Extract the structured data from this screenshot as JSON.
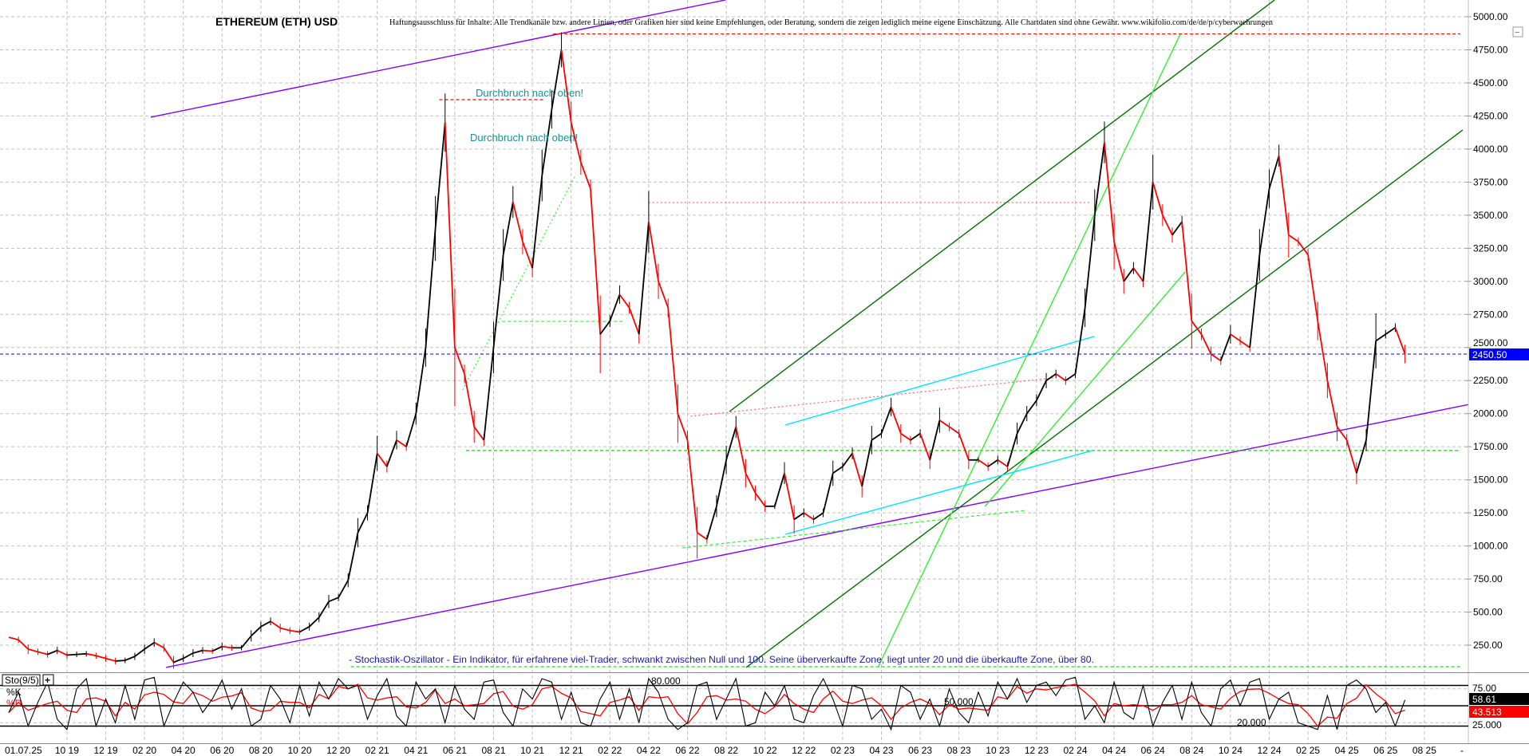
{
  "header": {
    "title": "ETHEREUM (ETH) USD",
    "disclaimer": "Haftungsausschluss für Inhalte: Alle Trendkanäle bzw. andere Linien, oder Grafiken hier sind keine Empfehlungen, oder Beratung, sondern die zeigen lediglich meine eigene Einschätzung. Alle Chartdaten sind ohne Gewähr.  www.wikifolio.com/de/de/p/cyberwaehrungen"
  },
  "annotations": {
    "breakout_1": "Durchbruch nach oben!",
    "breakout_2": "Durchbruch nach oben!",
    "stochastic_note": "- Stochastik-Oszillator - Ein Indikator, für erfahrene viel-Trader, schwankt zwischen Null und 100. Seine überverkaufte Zone, liegt unter 20 und die überkaufte Zone, über 80."
  },
  "indicator": {
    "name": "Sto(9/5)",
    "add": "+",
    "k_label": "%K",
    "d_label": "%D",
    "level_80": "80.000",
    "level_50": "50.000",
    "level_20": "20.000",
    "axis_75": "75.00",
    "axis_25": "25.000",
    "k_value": "58.61",
    "d_value": "43.513"
  },
  "date_label": "01.07.25",
  "axis_end": "-",
  "collapse": "−",
  "price_tag": "2450.50",
  "colors": {
    "up": "#000000",
    "down": "#ff0000",
    "price_line": "#0000ff",
    "support": "#8000ff",
    "grid": "#c0c0c0"
  },
  "chart_data": {
    "type": "line",
    "title": "ETHEREUM (ETH) USD",
    "xlabel": "",
    "ylabel": "",
    "ylim": [
      0,
      5127
    ],
    "grid": true,
    "yticks": [
      250,
      500,
      750,
      1000,
      1250,
      1500,
      1750,
      2000,
      2250,
      2500,
      2750,
      3000,
      3250,
      3500,
      3750,
      4000,
      4250,
      4500,
      4750,
      5000
    ],
    "xticks": [
      "10 19",
      "12 19",
      "02 20",
      "04 20",
      "06 20",
      "08 20",
      "10 20",
      "12 20",
      "02 21",
      "04 21",
      "06 21",
      "08 21",
      "10 21",
      "12 21",
      "02 22",
      "04 22",
      "06 22",
      "08 22",
      "10 22",
      "12 22",
      "02 23",
      "04 23",
      "06 23",
      "08 23",
      "10 23",
      "12 23",
      "02 24",
      "04 24",
      "06 24",
      "08 24",
      "10 24",
      "12 24",
      "02 25",
      "04 25",
      "06 25",
      "08 25"
    ],
    "current_price": 2450.5,
    "series": [
      {
        "name": "ETH/USD",
        "start": "2019-07-01",
        "step": "half-month",
        "values": [
          310,
          290,
          220,
          200,
          180,
          210,
          175,
          180,
          185,
          170,
          150,
          130,
          135,
          165,
          220,
          270,
          230,
          120,
          150,
          190,
          210,
          205,
          240,
          230,
          230,
          320,
          390,
          430,
          380,
          360,
          350,
          390,
          460,
          580,
          610,
          740,
          1100,
          1250,
          1700,
          1600,
          1800,
          1750,
          2000,
          2500,
          3400,
          4200,
          2500,
          2300,
          1900,
          1800,
          2500,
          3200,
          3600,
          3300,
          3100,
          3800,
          4300,
          4750,
          4200,
          3900,
          3700,
          2600,
          2700,
          2900,
          2800,
          2600,
          3450,
          3000,
          2800,
          2000,
          1800,
          1100,
          1050,
          1300,
          1650,
          1900,
          1550,
          1400,
          1300,
          1300,
          1550,
          1200,
          1250,
          1200,
          1250,
          1550,
          1600,
          1700,
          1450,
          1800,
          1850,
          2050,
          1850,
          1800,
          1850,
          1650,
          1950,
          1900,
          1850,
          1650,
          1650,
          1600,
          1650,
          1600,
          1850,
          2000,
          2100,
          2250,
          2300,
          2250,
          2300,
          2800,
          3500,
          4050,
          3300,
          3000,
          3100,
          3000,
          3750,
          3500,
          3350,
          3450,
          2700,
          2600,
          2450,
          2400,
          2600,
          2550,
          2500,
          3200,
          3700,
          3950,
          3350,
          3300,
          3200,
          2700,
          2250,
          1900,
          1800,
          1550,
          1800,
          2550,
          2600,
          2650,
          2450.5
        ]
      }
    ],
    "trendlines": [
      {
        "name": "support-trendline",
        "from": [
          2020.176,
          82
        ],
        "to": [
          2026.033,
          2161
        ],
        "color": "#8000ff",
        "style": "solid"
      },
      {
        "name": "top-trendline",
        "from": [
          2020.11,
          4241
        ],
        "to": [
          2022.58,
          5127
        ],
        "color": "#8000ff",
        "style": "solid"
      },
      {
        "name": "ath-level",
        "from": [
          2021.839,
          4870
        ],
        "to": [
          2025.738,
          4870
        ],
        "color": "#ff0000",
        "style": "dashed"
      },
      {
        "name": "support-level-1720",
        "from": [
          2021.465,
          1721
        ],
        "to": [
          2025.738,
          1721
        ],
        "color": "#00dd00",
        "style": "dashed"
      },
      {
        "name": "base-level",
        "from": [
          2020.97,
          87
        ],
        "to": [
          2025.738,
          87
        ],
        "color": "#00dd00",
        "style": "dashed"
      },
      {
        "name": "channel-upper",
        "from": [
          2022.597,
          2016
        ],
        "to": [
          2024.94,
          5127
        ],
        "color": "#007000",
        "style": "solid"
      },
      {
        "name": "channel-lower",
        "from": [
          2022.669,
          82
        ],
        "to": [
          2025.748,
          4144
        ],
        "color": "#007000",
        "style": "solid"
      },
      {
        "name": "steep-trendline",
        "from": [
          2023.235,
          82
        ],
        "to": [
          2024.534,
          4867
        ],
        "color": "#33ee33",
        "style": "solid"
      },
      {
        "name": "steep-trendline-2",
        "from": [
          2023.695,
          1299
        ],
        "to": [
          2024.555,
          3071
        ],
        "color": "#33ee33",
        "style": "solid"
      },
      {
        "name": "cyan-upper",
        "from": [
          2022.837,
          1914
        ],
        "to": [
          2024.164,
          2583
        ],
        "color": "#00e5ff",
        "style": "solid"
      },
      {
        "name": "cyan-lower",
        "from": [
          2022.837,
          1088
        ],
        "to": [
          2024.157,
          1721
        ],
        "color": "#00e5ff",
        "style": "solid"
      },
      {
        "name": "red-dotted-rise",
        "from": [
          2022.43,
          1980
        ],
        "to": [
          2023.99,
          2270
        ],
        "color": "#ff6666",
        "style": "dotted"
      },
      {
        "name": "resistance-3590",
        "from": [
          2022.25,
          3596
        ],
        "to": [
          2024.15,
          3596
        ],
        "color": "#ff6666",
        "style": "dotted"
      },
      {
        "name": "breakout-box",
        "from": [
          2021.35,
          4373
        ],
        "to": [
          2021.8,
          4373
        ],
        "color": "#ff0000",
        "style": "dashed"
      },
      {
        "name": "green-dotted-2021",
        "from": [
          2021.45,
          2179
        ],
        "to": [
          2021.935,
          3800
        ],
        "color": "#33ee33",
        "style": "dotted"
      },
      {
        "name": "level-2700",
        "from": [
          2021.62,
          2697
        ],
        "to": [
          2022.14,
          2697
        ],
        "color": "#33ee33",
        "style": "dashed"
      },
      {
        "name": "green-dotted-2022",
        "from": [
          2022.394,
          985
        ],
        "to": [
          2023.872,
          1269
        ],
        "color": "#33ee33",
        "style": "dashed"
      }
    ],
    "stochastic": {
      "name": "Sto(9/5)",
      "levels": [
        80,
        50,
        20
      ],
      "ylim": [
        0,
        100
      ],
      "k": [
        40,
        70,
        20,
        55,
        85,
        30,
        15,
        75,
        90,
        20,
        60,
        25,
        80,
        30,
        88,
        92,
        20,
        55,
        85,
        70,
        40,
        60,
        88,
        45,
        75,
        20,
        30,
        80,
        60,
        25,
        80,
        35,
        85,
        60,
        90,
        75,
        80,
        30,
        65,
        90,
        35,
        20,
        85,
        60,
        75,
        25,
        80,
        45,
        30,
        85,
        88,
        40,
        20,
        75,
        60,
        90,
        85,
        30,
        70,
        25,
        20,
        60,
        85,
        30,
        75,
        25,
        90,
        70,
        30,
        15,
        25,
        80,
        85,
        30,
        60,
        90,
        20,
        25,
        70,
        50,
        80,
        30,
        25,
        65,
        90,
        60,
        20,
        80,
        75,
        30,
        45,
        15,
        80,
        70,
        30,
        60,
        20,
        75,
        40,
        25,
        70,
        35,
        85,
        60,
        90,
        55,
        80,
        85,
        65,
        88,
        92,
        30,
        50,
        25,
        85,
        40,
        30,
        80,
        20,
        55,
        80,
        30,
        85,
        40,
        20,
        75,
        88,
        50,
        85,
        90,
        30,
        60,
        70,
        25,
        20,
        15,
        65,
        15,
        80,
        88,
        75,
        40,
        55,
        20,
        58.61
      ],
      "k_last": 58.61,
      "d_last": 43.513
    }
  }
}
